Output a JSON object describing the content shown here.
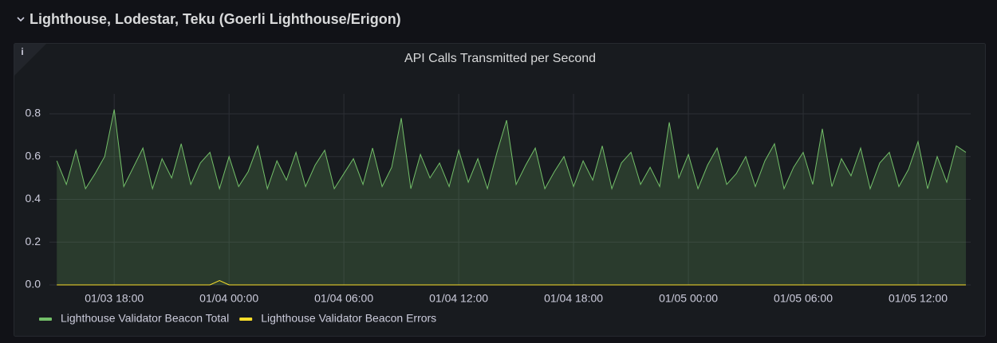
{
  "header": {
    "title": "Lighthouse, Lodestar, Teku (Goerli Lighthouse/Erigon)"
  },
  "chart_data": {
    "type": "line",
    "title": "API Calls Transmitted per Second",
    "x": [
      "01/03 15:00",
      "01/03 15:30",
      "01/03 16:00",
      "01/03 16:30",
      "01/03 17:00",
      "01/03 17:30",
      "01/03 18:00",
      "01/03 18:30",
      "01/03 19:00",
      "01/03 19:30",
      "01/03 20:00",
      "01/03 20:30",
      "01/03 21:00",
      "01/03 21:30",
      "01/03 22:00",
      "01/03 22:30",
      "01/03 23:00",
      "01/03 23:30",
      "01/04 00:00",
      "01/04 00:30",
      "01/04 01:00",
      "01/04 01:30",
      "01/04 02:00",
      "01/04 02:30",
      "01/04 03:00",
      "01/04 03:30",
      "01/04 04:00",
      "01/04 04:30",
      "01/04 05:00",
      "01/04 05:30",
      "01/04 06:00",
      "01/04 06:30",
      "01/04 07:00",
      "01/04 07:30",
      "01/04 08:00",
      "01/04 08:30",
      "01/04 09:00",
      "01/04 09:30",
      "01/04 10:00",
      "01/04 10:30",
      "01/04 11:00",
      "01/04 11:30",
      "01/04 12:00",
      "01/04 12:30",
      "01/04 13:00",
      "01/04 13:30",
      "01/04 14:00",
      "01/04 14:30",
      "01/04 15:00",
      "01/04 15:30",
      "01/04 16:00",
      "01/04 16:30",
      "01/04 17:00",
      "01/04 17:30",
      "01/04 18:00",
      "01/04 18:30",
      "01/04 19:00",
      "01/04 19:30",
      "01/04 20:00",
      "01/04 20:30",
      "01/04 21:00",
      "01/04 21:30",
      "01/04 22:00",
      "01/04 22:30",
      "01/04 23:00",
      "01/04 23:30",
      "01/05 00:00",
      "01/05 00:30",
      "01/05 01:00",
      "01/05 01:30",
      "01/05 02:00",
      "01/05 02:30",
      "01/05 03:00",
      "01/05 03:30",
      "01/05 04:00",
      "01/05 04:30",
      "01/05 05:00",
      "01/05 05:30",
      "01/05 06:00",
      "01/05 06:30",
      "01/05 07:00",
      "01/05 07:30",
      "01/05 08:00",
      "01/05 08:30",
      "01/05 09:00",
      "01/05 09:30",
      "01/05 10:00",
      "01/05 10:30",
      "01/05 11:00",
      "01/05 11:30",
      "01/05 12:00",
      "01/05 12:30",
      "01/05 13:00",
      "01/05 13:30",
      "01/05 14:00",
      "01/05 14:30"
    ],
    "series": [
      {
        "name": "Lighthouse Validator Beacon Total",
        "color": "#73bf69",
        "fill": true,
        "values": [
          0.58,
          0.47,
          0.63,
          0.45,
          0.52,
          0.6,
          0.82,
          0.46,
          0.55,
          0.64,
          0.45,
          0.59,
          0.5,
          0.66,
          0.47,
          0.57,
          0.62,
          0.45,
          0.6,
          0.46,
          0.53,
          0.65,
          0.45,
          0.58,
          0.49,
          0.62,
          0.46,
          0.56,
          0.63,
          0.45,
          0.52,
          0.59,
          0.47,
          0.64,
          0.46,
          0.55,
          0.78,
          0.45,
          0.61,
          0.5,
          0.57,
          0.46,
          0.63,
          0.48,
          0.59,
          0.45,
          0.62,
          0.77,
          0.47,
          0.56,
          0.64,
          0.45,
          0.53,
          0.6,
          0.46,
          0.58,
          0.49,
          0.65,
          0.45,
          0.57,
          0.62,
          0.47,
          0.55,
          0.46,
          0.76,
          0.5,
          0.61,
          0.45,
          0.56,
          0.64,
          0.47,
          0.52,
          0.6,
          0.46,
          0.58,
          0.66,
          0.45,
          0.55,
          0.62,
          0.47,
          0.73,
          0.46,
          0.59,
          0.51,
          0.64,
          0.45,
          0.57,
          0.62,
          0.46,
          0.54,
          0.67,
          0.45,
          0.6,
          0.48,
          0.65,
          0.62
        ]
      },
      {
        "name": "Lighthouse Validator Beacon Errors",
        "color": "#fade2a",
        "fill": false,
        "values": [
          0,
          0,
          0,
          0,
          0,
          0,
          0,
          0,
          0,
          0,
          0,
          0,
          0,
          0,
          0,
          0,
          0,
          0.02,
          0,
          0,
          0,
          0,
          0,
          0,
          0,
          0,
          0,
          0,
          0,
          0,
          0,
          0,
          0,
          0,
          0,
          0,
          0,
          0,
          0,
          0,
          0,
          0,
          0,
          0,
          0,
          0,
          0,
          0,
          0,
          0,
          0,
          0,
          0,
          0,
          0,
          0,
          0,
          0,
          0,
          0,
          0,
          0,
          0,
          0,
          0,
          0,
          0,
          0,
          0,
          0,
          0,
          0,
          0,
          0,
          0,
          0,
          0,
          0,
          0,
          0,
          0,
          0,
          0,
          0,
          0,
          0,
          0,
          0,
          0,
          0,
          0,
          0,
          0,
          0,
          0,
          0
        ]
      }
    ],
    "xlim": [
      "01/03 14:37",
      "01/05 14:45"
    ],
    "xticks": [
      "01/03 18:00",
      "01/04 00:00",
      "01/04 06:00",
      "01/04 12:00",
      "01/04 18:00",
      "01/05 00:00",
      "01/05 06:00",
      "01/05 12:00"
    ],
    "ylim": [
      0,
      0.893
    ],
    "yticks": [
      {
        "value": 0,
        "label": "0.0"
      },
      0.2,
      0.4,
      0.6,
      0.8
    ],
    "grid": true
  }
}
